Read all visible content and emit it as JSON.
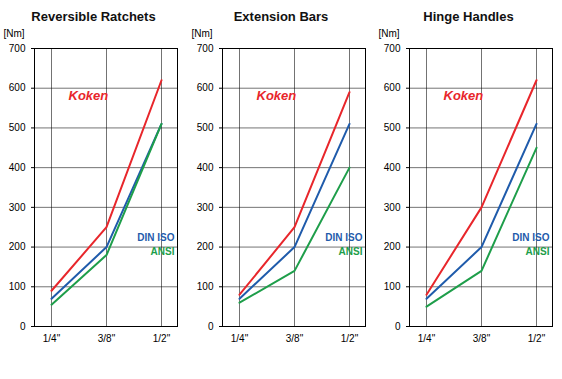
{
  "chart_data": [
    {
      "type": "line",
      "title": "Reversible Ratchets",
      "ylabel": "[Nm]",
      "categories": [
        "1/4\"",
        "3/8\"",
        "1/2\""
      ],
      "series": [
        {
          "name": "Koken",
          "color": "#e8262b",
          "values": [
            90,
            250,
            620
          ]
        },
        {
          "name": "DIN ISO",
          "color": "#1f5bab",
          "values": [
            70,
            200,
            510
          ]
        },
        {
          "name": "ANSI",
          "color": "#1e9e4a",
          "values": [
            55,
            180,
            510
          ]
        }
      ],
      "ylim": [
        0,
        700
      ],
      "yticks": [
        0,
        100,
        200,
        300,
        400,
        500,
        600,
        700
      ],
      "grid": true
    },
    {
      "type": "line",
      "title": "Extension Bars",
      "ylabel": "[Nm]",
      "categories": [
        "1/4\"",
        "3/8\"",
        "1/2\""
      ],
      "series": [
        {
          "name": "Koken",
          "color": "#e8262b",
          "values": [
            80,
            250,
            590
          ]
        },
        {
          "name": "DIN ISO",
          "color": "#1f5bab",
          "values": [
            70,
            200,
            510
          ]
        },
        {
          "name": "ANSI",
          "color": "#1e9e4a",
          "values": [
            60,
            140,
            400
          ]
        }
      ],
      "ylim": [
        0,
        700
      ],
      "yticks": [
        0,
        100,
        200,
        300,
        400,
        500,
        600,
        700
      ],
      "grid": true
    },
    {
      "type": "line",
      "title": "Hinge Handles",
      "ylabel": "[Nm]",
      "categories": [
        "1/4\"",
        "3/8\"",
        "1/2\""
      ],
      "series": [
        {
          "name": "Koken",
          "color": "#e8262b",
          "values": [
            80,
            300,
            620
          ]
        },
        {
          "name": "DIN ISO",
          "color": "#1f5bab",
          "values": [
            70,
            200,
            510
          ]
        },
        {
          "name": "ANSI",
          "color": "#1e9e4a",
          "values": [
            50,
            140,
            450
          ]
        }
      ],
      "ylim": [
        0,
        700
      ],
      "yticks": [
        0,
        100,
        200,
        300,
        400,
        500,
        600,
        700
      ],
      "grid": true
    }
  ]
}
